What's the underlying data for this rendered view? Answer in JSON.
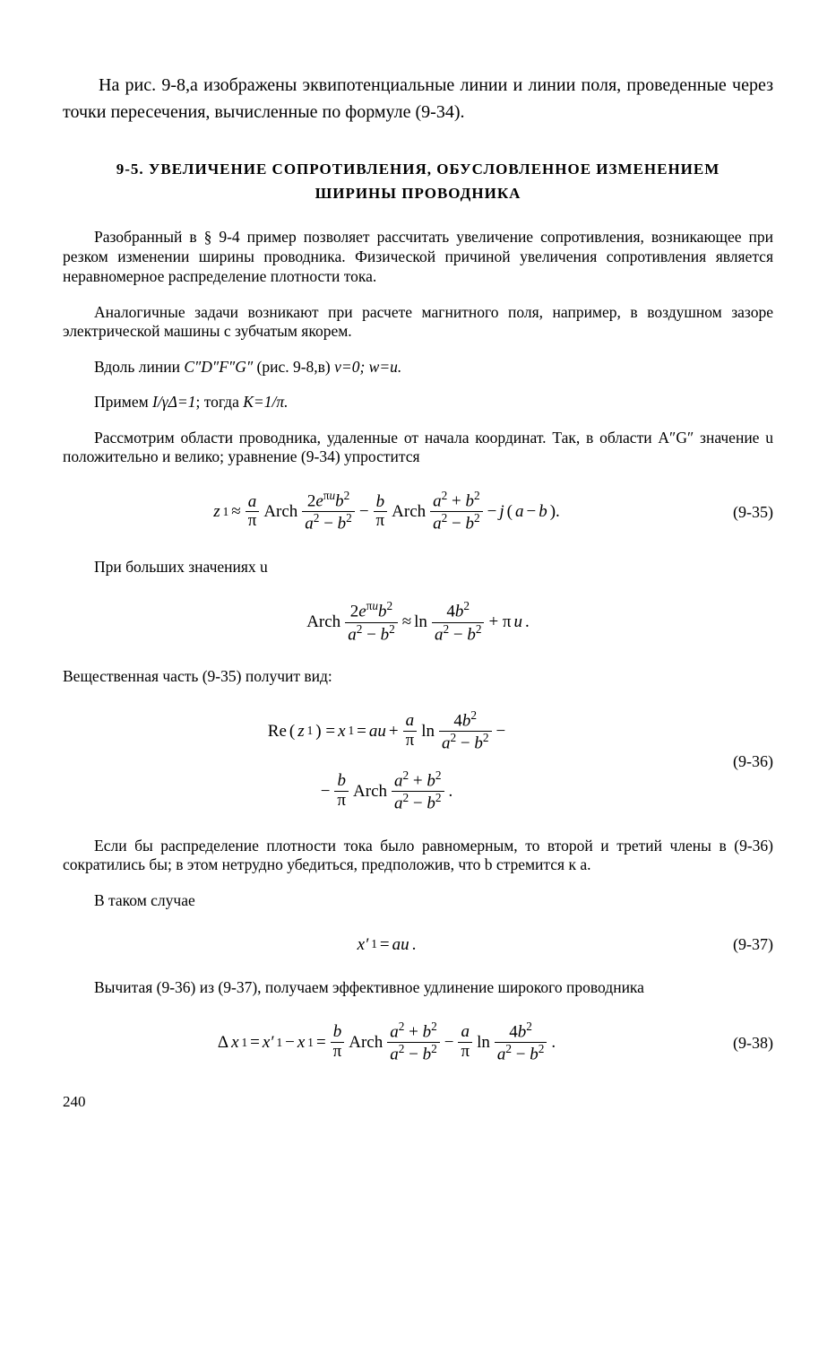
{
  "introPara": "На рис. 9-8,а изображены эквипотенциальные линии и линии поля, проведенные через точки пересечения, вычисленные по формуле (9-34).",
  "sectionHeading": "9-5. УВЕЛИЧЕНИЕ СОПРОТИВЛЕНИЯ, ОБУСЛОВЛЕННОЕ ИЗМЕНЕНИЕМ ШИРИНЫ ПРОВОДНИКА",
  "para1": "Разобранный в § 9-4 пример позволяет рассчитать увеличение сопротивления, возникающее при резком изменении ширины проводника. Физической причиной увеличения сопротивления является неравномерное распределение плотности тока.",
  "para2": "Аналогичные задачи возникают при расчете магнитного поля, например, в воздушном зазоре электрической машины с зубчатым якорем.",
  "para3a": "Вдоль линии ",
  "para3b": " (рис. 9-8,в)  ",
  "para4a": "Примем ",
  "para4b": "; тогда ",
  "para5": "Рассмотрим области проводника, удаленные от начала координат. Так, в области A″G″ значение u положительно и велико; уравнение (9-34) упростится",
  "afterEq35": "При больших значениях u",
  "para6": "Вещественная часть (9-35) получит вид:",
  "para7": "Если бы распределение плотности тока было равномерным, то второй и третий члены в (9-36) сократились бы; в этом нетрудно убедиться, предположив, что b стремится к a.",
  "para8": "В таком случае",
  "para9": "Вычитая (9-36) из (9-37), получаем эффективное удлинение широкого проводника",
  "eqNums": {
    "e35": "(9-35)",
    "e36": "(9-36)",
    "e37": "(9-37)",
    "e38": "(9-38)"
  },
  "labels": {
    "cdg": "C″D″F″G″",
    "v0": "v=0;  w=u.",
    "igamma": "I/γΔ=1",
    "k1pi": "K=1/π.",
    "arch": "Arch",
    "re": "Re",
    "ln": "ln"
  },
  "pageNum": "240"
}
